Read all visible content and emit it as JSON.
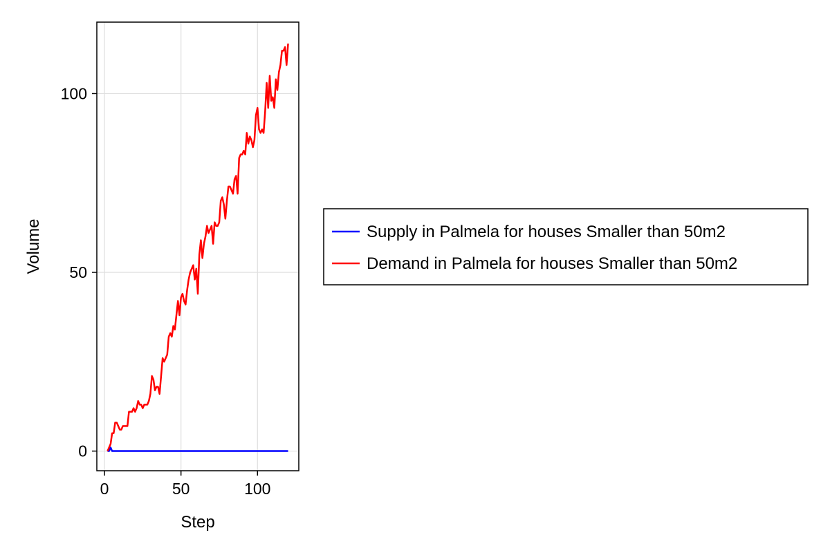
{
  "chart_data": {
    "type": "line",
    "xlabel": "Step",
    "ylabel": "Volume",
    "xlim": [
      -5,
      127
    ],
    "ylim": [
      -5.5,
      120
    ],
    "xticks": [
      0,
      50,
      100
    ],
    "yticks": [
      0,
      50,
      100
    ],
    "x_tick_labels": [
      "0",
      "50",
      "100"
    ],
    "y_tick_labels": [
      "0",
      "50",
      "100"
    ],
    "grid": true,
    "legend_position": "right",
    "series": [
      {
        "name": "Supply in Palmela for houses Smaller than 50m2",
        "color": "#0000ff",
        "x": [
          2,
          3,
          4,
          5,
          120
        ],
        "y": [
          0,
          0,
          1,
          0,
          0
        ]
      },
      {
        "name": "Demand in Palmela for houses Smaller than 50m2",
        "color": "#ff0000",
        "x": [
          2,
          3,
          4,
          5,
          6,
          7,
          8,
          9,
          10,
          11,
          12,
          13,
          14,
          15,
          16,
          17,
          18,
          19,
          20,
          21,
          22,
          23,
          24,
          25,
          26,
          27,
          28,
          29,
          30,
          31,
          32,
          33,
          34,
          35,
          36,
          37,
          38,
          39,
          40,
          41,
          42,
          43,
          44,
          45,
          46,
          47,
          48,
          49,
          50,
          51,
          52,
          53,
          54,
          55,
          56,
          57,
          58,
          59,
          60,
          61,
          62,
          63,
          64,
          65,
          66,
          67,
          68,
          69,
          70,
          71,
          72,
          73,
          74,
          75,
          76,
          77,
          78,
          79,
          80,
          81,
          82,
          83,
          84,
          85,
          86,
          87,
          88,
          89,
          90,
          91,
          92,
          93,
          94,
          95,
          96,
          97,
          98,
          99,
          100,
          101,
          102,
          103,
          104,
          105,
          106,
          107,
          108,
          109,
          110,
          111,
          112,
          113,
          114,
          115,
          116,
          117,
          118,
          119,
          120
        ],
        "y": [
          0,
          1,
          2,
          5,
          5,
          8,
          8,
          7,
          6,
          6,
          7,
          7,
          7,
          7,
          11,
          11,
          11,
          12,
          11,
          12,
          14,
          13,
          13,
          12,
          13,
          13,
          13,
          14,
          16,
          21,
          20,
          17,
          18,
          18,
          16,
          21,
          26,
          25,
          26,
          27,
          32,
          33,
          32,
          35,
          34,
          38,
          42,
          38,
          43,
          44,
          42,
          41,
          45,
          48,
          50,
          51,
          52,
          48,
          51,
          44,
          55,
          59,
          54,
          58,
          60,
          63,
          61,
          62,
          63,
          58,
          64,
          63,
          63,
          64,
          70,
          71,
          69,
          65,
          70,
          74,
          74,
          73,
          72,
          76,
          77,
          72,
          82,
          83,
          83,
          84,
          83,
          89,
          86,
          88,
          87,
          85,
          87,
          94,
          96,
          90,
          89,
          90,
          89,
          95,
          103,
          96,
          105,
          98,
          99,
          96,
          104,
          101,
          106,
          108,
          112,
          112,
          113,
          108,
          114
        ]
      }
    ]
  }
}
